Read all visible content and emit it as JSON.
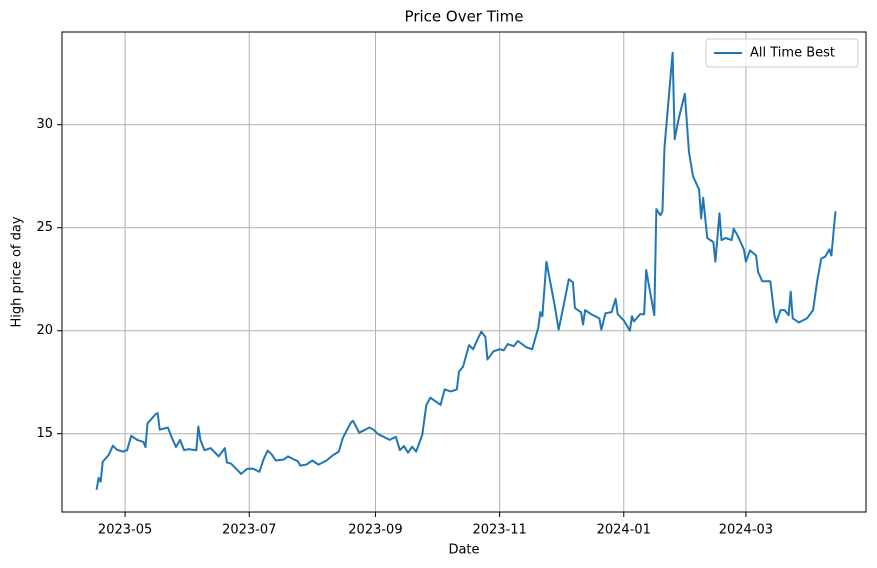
{
  "chart_data": {
    "type": "line",
    "title": "Price Over Time",
    "x_label": "Date",
    "y_label": "High price of day",
    "x": [
      "2023-04-17",
      "2023-04-18",
      "2023-04-19",
      "2023-04-20",
      "2023-04-23",
      "2023-04-25",
      "2023-04-27",
      "2023-04-30",
      "2023-05-02",
      "2023-05-04",
      "2023-05-07",
      "2023-05-10",
      "2023-05-11",
      "2023-05-12",
      "2023-05-16",
      "2023-05-17",
      "2023-05-18",
      "2023-05-22",
      "2023-05-24",
      "2023-05-26",
      "2023-05-28",
      "2023-05-30",
      "2023-06-01",
      "2023-06-05",
      "2023-06-06",
      "2023-06-07",
      "2023-06-09",
      "2023-06-12",
      "2023-06-16",
      "2023-06-19",
      "2023-06-20",
      "2023-06-22",
      "2023-06-26",
      "2023-06-27",
      "2023-06-30",
      "2023-07-03",
      "2023-07-06",
      "2023-07-08",
      "2023-07-10",
      "2023-07-12",
      "2023-07-14",
      "2023-07-18",
      "2023-07-20",
      "2023-07-23",
      "2023-07-25",
      "2023-07-26",
      "2023-07-29",
      "2023-08-01",
      "2023-08-04",
      "2023-08-08",
      "2023-08-11",
      "2023-08-14",
      "2023-08-16",
      "2023-08-20",
      "2023-08-21",
      "2023-08-24",
      "2023-08-27",
      "2023-08-29",
      "2023-08-31",
      "2023-09-02",
      "2023-09-05",
      "2023-09-08",
      "2023-09-11",
      "2023-09-13",
      "2023-09-15",
      "2023-09-17",
      "2023-09-19",
      "2023-09-21",
      "2023-09-24",
      "2023-09-26",
      "2023-09-28",
      "2023-10-03",
      "2023-10-05",
      "2023-10-08",
      "2023-10-11",
      "2023-10-12",
      "2023-10-14",
      "2023-10-17",
      "2023-10-19",
      "2023-10-21",
      "2023-10-23",
      "2023-10-25",
      "2023-10-26",
      "2023-10-29",
      "2023-11-01",
      "2023-11-03",
      "2023-11-05",
      "2023-11-08",
      "2023-11-10",
      "2023-11-14",
      "2023-11-17",
      "2023-11-20",
      "2023-11-21",
      "2023-11-22",
      "2023-11-24",
      "2023-11-28",
      "2023-11-30",
      "2023-12-03",
      "2023-12-05",
      "2023-12-07",
      "2023-12-08",
      "2023-12-11",
      "2023-12-12",
      "2023-12-13",
      "2023-12-16",
      "2023-12-20",
      "2023-12-21",
      "2023-12-23",
      "2023-12-26",
      "2023-12-28",
      "2023-12-29",
      "2024-01-01",
      "2024-01-04",
      "2024-01-05",
      "2024-01-06",
      "2024-01-09",
      "2024-01-11",
      "2024-01-12",
      "2024-01-16",
      "2024-01-17",
      "2024-01-19",
      "2024-01-20",
      "2024-01-21",
      "2024-01-25",
      "2024-01-26",
      "2024-01-28",
      "2024-01-31",
      "2024-02-02",
      "2024-02-04",
      "2024-02-07",
      "2024-02-08",
      "2024-02-09",
      "2024-02-11",
      "2024-02-14",
      "2024-02-15",
      "2024-02-17",
      "2024-02-18",
      "2024-02-20",
      "2024-02-23",
      "2024-02-24",
      "2024-02-26",
      "2024-02-29",
      "2024-03-01",
      "2024-03-03",
      "2024-03-06",
      "2024-03-07",
      "2024-03-09",
      "2024-03-13",
      "2024-03-15",
      "2024-03-16",
      "2024-03-18",
      "2024-03-20",
      "2024-03-22",
      "2024-03-23",
      "2024-03-24",
      "2024-03-27",
      "2024-03-29",
      "2024-03-31",
      "2024-04-03",
      "2024-04-05",
      "2024-04-07",
      "2024-04-09",
      "2024-04-11",
      "2024-04-12",
      "2024-04-14"
    ],
    "series": [
      {
        "name": "All Time Best",
        "color": "#1f77b4",
        "values": [
          12.28,
          12.86,
          12.67,
          13.64,
          13.98,
          14.42,
          14.22,
          14.13,
          14.2,
          14.9,
          14.7,
          14.6,
          14.35,
          15.5,
          15.95,
          16.0,
          15.2,
          15.3,
          14.8,
          14.35,
          14.7,
          14.2,
          14.25,
          14.2,
          15.35,
          14.7,
          14.2,
          14.3,
          13.9,
          14.3,
          13.6,
          13.55,
          13.15,
          13.05,
          13.3,
          13.3,
          13.15,
          13.75,
          14.18,
          14.0,
          13.7,
          13.75,
          13.9,
          13.75,
          13.65,
          13.45,
          13.5,
          13.7,
          13.5,
          13.7,
          13.95,
          14.13,
          14.8,
          15.55,
          15.63,
          15.05,
          15.2,
          15.3,
          15.2,
          15.0,
          14.85,
          14.7,
          14.85,
          14.2,
          14.4,
          14.08,
          14.37,
          14.13,
          14.95,
          16.4,
          16.75,
          16.4,
          17.15,
          17.05,
          17.15,
          18.0,
          18.25,
          19.3,
          19.1,
          19.55,
          19.95,
          19.7,
          18.6,
          19.0,
          19.1,
          19.05,
          19.35,
          19.25,
          19.5,
          19.2,
          19.1,
          20.15,
          20.9,
          20.7,
          23.35,
          21.25,
          20.05,
          21.5,
          22.5,
          22.35,
          21.1,
          20.9,
          20.3,
          21.0,
          20.8,
          20.6,
          20.05,
          20.85,
          20.9,
          21.55,
          20.8,
          20.5,
          20.0,
          20.7,
          20.45,
          20.8,
          20.8,
          22.95,
          20.75,
          25.9,
          25.6,
          25.8,
          28.9,
          33.5,
          29.3,
          30.3,
          31.5,
          28.7,
          27.5,
          26.85,
          25.45,
          26.45,
          24.5,
          24.3,
          23.35,
          25.7,
          24.4,
          24.5,
          24.4,
          24.95,
          24.6,
          23.95,
          23.35,
          23.9,
          23.65,
          22.85,
          22.4,
          22.4,
          20.75,
          20.4,
          21.0,
          21.0,
          20.75,
          21.9,
          20.6,
          20.4,
          20.5,
          20.6,
          21.0,
          22.4,
          23.5,
          23.6,
          23.95,
          23.65,
          25.8
        ]
      }
    ],
    "xlim": [
      "2023-03-31",
      "2024-04-29"
    ],
    "xticks": [
      {
        "value": "2023-05-01",
        "label": "2023-05"
      },
      {
        "value": "2023-07-01",
        "label": "2023-07"
      },
      {
        "value": "2023-09-01",
        "label": "2023-09"
      },
      {
        "value": "2023-11-01",
        "label": "2023-11"
      },
      {
        "value": "2024-01-01",
        "label": "2024-01"
      },
      {
        "value": "2024-03-01",
        "label": "2024-03"
      }
    ],
    "ylim": [
      11.2,
      34.5
    ],
    "yticks": [
      15,
      20,
      25,
      30
    ],
    "grid": true,
    "legend": "upper right"
  }
}
